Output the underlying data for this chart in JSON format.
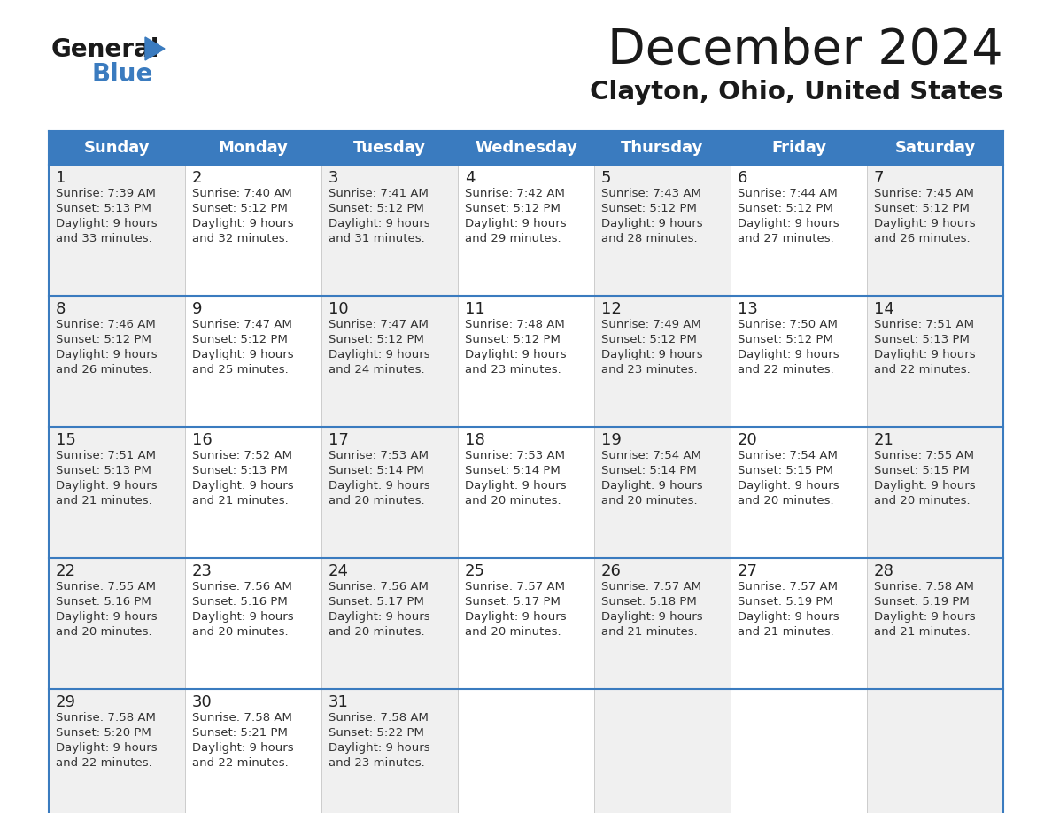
{
  "title": "December 2024",
  "subtitle": "Clayton, Ohio, United States",
  "header_color": "#3a7bbf",
  "header_text_color": "#ffffff",
  "cell_bg_even": "#f0f0f0",
  "cell_bg_odd": "#ffffff",
  "border_color": "#3a7bbf",
  "text_color": "#333333",
  "day_num_color": "#222222",
  "days_of_week": [
    "Sunday",
    "Monday",
    "Tuesday",
    "Wednesday",
    "Thursday",
    "Friday",
    "Saturday"
  ],
  "weeks": [
    [
      {
        "day": 1,
        "sunrise": "7:39 AM",
        "sunset": "5:13 PM",
        "dl1": "9 hours",
        "dl2": "and 33 minutes."
      },
      {
        "day": 2,
        "sunrise": "7:40 AM",
        "sunset": "5:12 PM",
        "dl1": "9 hours",
        "dl2": "and 32 minutes."
      },
      {
        "day": 3,
        "sunrise": "7:41 AM",
        "sunset": "5:12 PM",
        "dl1": "9 hours",
        "dl2": "and 31 minutes."
      },
      {
        "day": 4,
        "sunrise": "7:42 AM",
        "sunset": "5:12 PM",
        "dl1": "9 hours",
        "dl2": "and 29 minutes."
      },
      {
        "day": 5,
        "sunrise": "7:43 AM",
        "sunset": "5:12 PM",
        "dl1": "9 hours",
        "dl2": "and 28 minutes."
      },
      {
        "day": 6,
        "sunrise": "7:44 AM",
        "sunset": "5:12 PM",
        "dl1": "9 hours",
        "dl2": "and 27 minutes."
      },
      {
        "day": 7,
        "sunrise": "7:45 AM",
        "sunset": "5:12 PM",
        "dl1": "9 hours",
        "dl2": "and 26 minutes."
      }
    ],
    [
      {
        "day": 8,
        "sunrise": "7:46 AM",
        "sunset": "5:12 PM",
        "dl1": "9 hours",
        "dl2": "and 26 minutes."
      },
      {
        "day": 9,
        "sunrise": "7:47 AM",
        "sunset": "5:12 PM",
        "dl1": "9 hours",
        "dl2": "and 25 minutes."
      },
      {
        "day": 10,
        "sunrise": "7:47 AM",
        "sunset": "5:12 PM",
        "dl1": "9 hours",
        "dl2": "and 24 minutes."
      },
      {
        "day": 11,
        "sunrise": "7:48 AM",
        "sunset": "5:12 PM",
        "dl1": "9 hours",
        "dl2": "and 23 minutes."
      },
      {
        "day": 12,
        "sunrise": "7:49 AM",
        "sunset": "5:12 PM",
        "dl1": "9 hours",
        "dl2": "and 23 minutes."
      },
      {
        "day": 13,
        "sunrise": "7:50 AM",
        "sunset": "5:12 PM",
        "dl1": "9 hours",
        "dl2": "and 22 minutes."
      },
      {
        "day": 14,
        "sunrise": "7:51 AM",
        "sunset": "5:13 PM",
        "dl1": "9 hours",
        "dl2": "and 22 minutes."
      }
    ],
    [
      {
        "day": 15,
        "sunrise": "7:51 AM",
        "sunset": "5:13 PM",
        "dl1": "9 hours",
        "dl2": "and 21 minutes."
      },
      {
        "day": 16,
        "sunrise": "7:52 AM",
        "sunset": "5:13 PM",
        "dl1": "9 hours",
        "dl2": "and 21 minutes."
      },
      {
        "day": 17,
        "sunrise": "7:53 AM",
        "sunset": "5:14 PM",
        "dl1": "9 hours",
        "dl2": "and 20 minutes."
      },
      {
        "day": 18,
        "sunrise": "7:53 AM",
        "sunset": "5:14 PM",
        "dl1": "9 hours",
        "dl2": "and 20 minutes."
      },
      {
        "day": 19,
        "sunrise": "7:54 AM",
        "sunset": "5:14 PM",
        "dl1": "9 hours",
        "dl2": "and 20 minutes."
      },
      {
        "day": 20,
        "sunrise": "7:54 AM",
        "sunset": "5:15 PM",
        "dl1": "9 hours",
        "dl2": "and 20 minutes."
      },
      {
        "day": 21,
        "sunrise": "7:55 AM",
        "sunset": "5:15 PM",
        "dl1": "9 hours",
        "dl2": "and 20 minutes."
      }
    ],
    [
      {
        "day": 22,
        "sunrise": "7:55 AM",
        "sunset": "5:16 PM",
        "dl1": "9 hours",
        "dl2": "and 20 minutes."
      },
      {
        "day": 23,
        "sunrise": "7:56 AM",
        "sunset": "5:16 PM",
        "dl1": "9 hours",
        "dl2": "and 20 minutes."
      },
      {
        "day": 24,
        "sunrise": "7:56 AM",
        "sunset": "5:17 PM",
        "dl1": "9 hours",
        "dl2": "and 20 minutes."
      },
      {
        "day": 25,
        "sunrise": "7:57 AM",
        "sunset": "5:17 PM",
        "dl1": "9 hours",
        "dl2": "and 20 minutes."
      },
      {
        "day": 26,
        "sunrise": "7:57 AM",
        "sunset": "5:18 PM",
        "dl1": "9 hours",
        "dl2": "and 21 minutes."
      },
      {
        "day": 27,
        "sunrise": "7:57 AM",
        "sunset": "5:19 PM",
        "dl1": "9 hours",
        "dl2": "and 21 minutes."
      },
      {
        "day": 28,
        "sunrise": "7:58 AM",
        "sunset": "5:19 PM",
        "dl1": "9 hours",
        "dl2": "and 21 minutes."
      }
    ],
    [
      {
        "day": 29,
        "sunrise": "7:58 AM",
        "sunset": "5:20 PM",
        "dl1": "9 hours",
        "dl2": "and 22 minutes."
      },
      {
        "day": 30,
        "sunrise": "7:58 AM",
        "sunset": "5:21 PM",
        "dl1": "9 hours",
        "dl2": "and 22 minutes."
      },
      {
        "day": 31,
        "sunrise": "7:58 AM",
        "sunset": "5:22 PM",
        "dl1": "9 hours",
        "dl2": "and 23 minutes."
      },
      null,
      null,
      null,
      null
    ]
  ]
}
